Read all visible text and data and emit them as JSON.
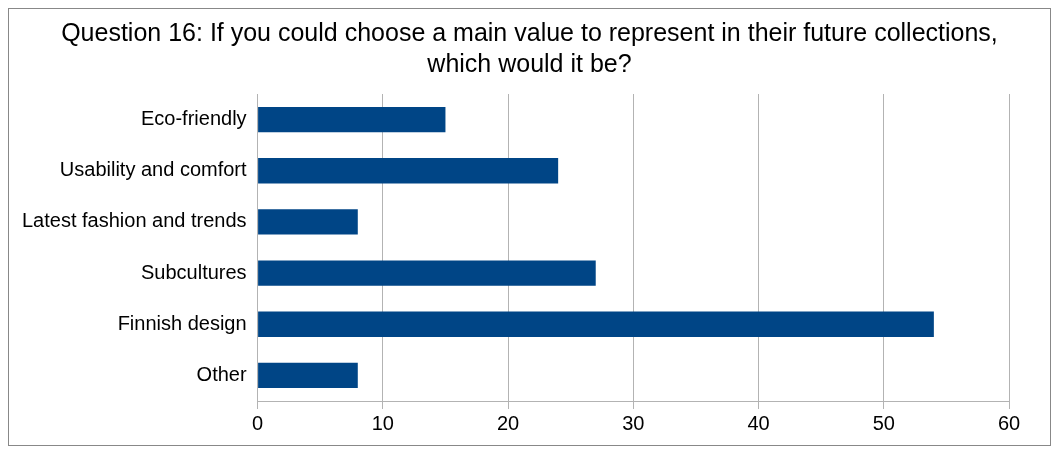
{
  "chart_data": {
    "type": "bar",
    "orientation": "horizontal",
    "title": "Question 16: If you could choose a main value to represent in their future collections, which would it be?",
    "categories": [
      "Eco-friendly",
      "Usability and comfort",
      "Latest fashion and trends",
      "Subcultures",
      "Finnish design",
      "Other"
    ],
    "values": [
      15,
      24,
      8,
      27,
      54,
      8
    ],
    "color": "#004586",
    "xlim": [
      0,
      60
    ],
    "xticks": [
      0,
      10,
      20,
      30,
      40,
      50,
      60
    ],
    "grid": "x",
    "legend": false
  }
}
